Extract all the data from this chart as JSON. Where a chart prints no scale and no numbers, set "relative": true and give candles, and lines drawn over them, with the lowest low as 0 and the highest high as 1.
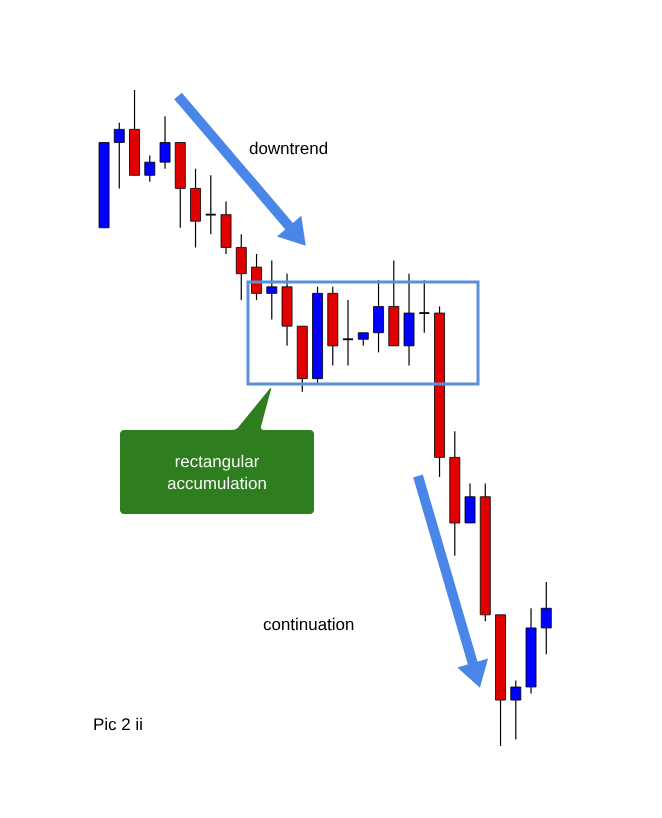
{
  "chart_data": {
    "type": "candlestick",
    "relative": true,
    "categories": [
      null,
      null,
      null,
      null,
      null,
      null,
      null,
      null,
      null,
      null,
      null,
      null,
      null,
      null,
      null,
      null,
      null,
      null,
      null,
      null,
      null,
      null,
      null,
      null,
      null,
      null,
      null,
      null,
      null,
      null
    ],
    "ohlc": [
      [
        0.79,
        0.92,
        0.79,
        0.92
      ],
      [
        0.92,
        0.95,
        0.85,
        0.94
      ],
      [
        0.94,
        1.0,
        0.87,
        0.87
      ],
      [
        0.87,
        0.9,
        0.86,
        0.89
      ],
      [
        0.89,
        0.96,
        0.88,
        0.92
      ],
      [
        0.92,
        0.92,
        0.79,
        0.85
      ],
      [
        0.85,
        0.88,
        0.76,
        0.8
      ],
      [
        0.81,
        0.87,
        0.78,
        0.81
      ],
      [
        0.81,
        0.83,
        0.75,
        0.76
      ],
      [
        0.76,
        0.78,
        0.68,
        0.72
      ],
      [
        0.73,
        0.75,
        0.68,
        0.69
      ],
      [
        0.69,
        0.74,
        0.65,
        0.7
      ],
      [
        0.7,
        0.72,
        0.61,
        0.64
      ],
      [
        0.64,
        0.64,
        0.54,
        0.56
      ],
      [
        0.56,
        0.7,
        0.55,
        0.69
      ],
      [
        0.69,
        0.7,
        0.58,
        0.61
      ],
      [
        0.62,
        0.68,
        0.58,
        0.62
      ],
      [
        0.62,
        0.63,
        0.61,
        0.63
      ],
      [
        0.63,
        0.71,
        0.6,
        0.67
      ],
      [
        0.67,
        0.74,
        0.61,
        0.61
      ],
      [
        0.61,
        0.72,
        0.58,
        0.66
      ],
      [
        0.66,
        0.71,
        0.63,
        0.66
      ],
      [
        0.66,
        0.67,
        0.41,
        0.44
      ],
      [
        0.44,
        0.48,
        0.29,
        0.34
      ],
      [
        0.34,
        0.4,
        0.34,
        0.38
      ],
      [
        0.38,
        0.4,
        0.19,
        0.2
      ],
      [
        0.2,
        0.2,
        0.0,
        0.07
      ],
      [
        0.07,
        0.1,
        0.01,
        0.09
      ],
      [
        0.09,
        0.21,
        0.08,
        0.18
      ],
      [
        0.18,
        0.25,
        0.14,
        0.21
      ]
    ],
    "colors": [
      "#0000ff",
      "#0000ff",
      "#e00000",
      "#0000ff",
      "#0000ff",
      "#e00000",
      "#e00000",
      "#000000",
      "#e00000",
      "#e00000",
      "#e00000",
      "#0000ff",
      "#e00000",
      "#e00000",
      "#0000ff",
      "#e00000",
      "#000000",
      "#0000ff",
      "#0000ff",
      "#e00000",
      "#0000ff",
      "#000000",
      "#e00000",
      "#e00000",
      "#0000ff",
      "#e00000",
      "#e00000",
      "#0000ff",
      "#0000ff",
      "#0000ff"
    ],
    "annotations": [
      "downtrend",
      "rectangular accumulation",
      "continuation",
      "Pic 2 ii"
    ]
  }
}
